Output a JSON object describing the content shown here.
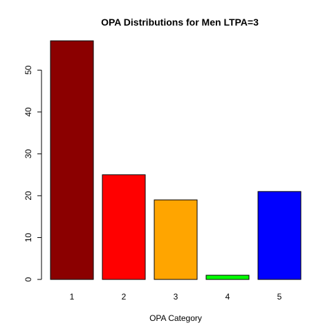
{
  "chart_data": {
    "type": "bar",
    "title": "OPA Distributions for Men LTPA=3",
    "xlabel": "OPA Category",
    "ylabel": "",
    "categories": [
      "1",
      "2",
      "3",
      "4",
      "5"
    ],
    "values": [
      57,
      25,
      19,
      1,
      21
    ],
    "colors": [
      "#8b0000",
      "#ff0000",
      "#ffa500",
      "#00ff00",
      "#0000ff"
    ],
    "ylim": [
      0,
      57
    ],
    "yticks": [
      0,
      10,
      20,
      30,
      40,
      50
    ],
    "grid": false,
    "legend": "none"
  }
}
